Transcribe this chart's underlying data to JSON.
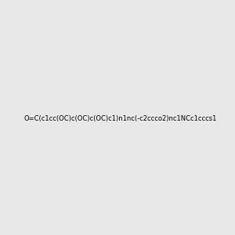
{
  "smiles": "O=C(c1cc(OC)c(OC)c(OC)c1)n1nc(-c2ccco2)nc1NCc1cccs1",
  "image_size": 300,
  "background_color": "#e8e8e8",
  "title": "",
  "dpi": 100
}
